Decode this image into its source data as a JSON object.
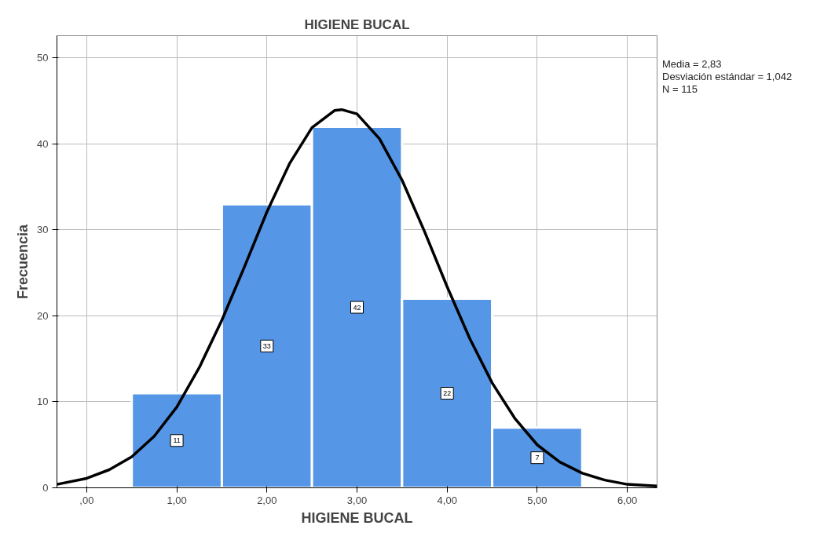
{
  "chart_data": {
    "type": "histogram",
    "title": "HIGIENE BUCAL",
    "xlabel": "HIGIENE BUCAL",
    "ylabel": "Frecuencia",
    "bins": [
      0.5,
      1.5,
      2.5,
      3.5,
      4.5,
      5.5
    ],
    "values": [
      11,
      33,
      42,
      22,
      7
    ],
    "color": "#5596e6",
    "value_labels": [
      "11",
      "33",
      "42",
      "22",
      "7"
    ],
    "series": [
      {
        "type": "line",
        "color": "#000000",
        "x": [
          -0.33,
          0,
          0.25,
          0.5,
          0.75,
          1,
          1.25,
          1.5,
          1.75,
          2,
          2.25,
          2.5,
          2.75,
          2.83,
          3,
          3.25,
          3.5,
          3.75,
          4,
          4.25,
          4.5,
          4.75,
          5,
          5.25,
          5.5,
          5.75,
          6,
          6.33
        ],
        "values": [
          0.4,
          1.1,
          2.1,
          3.6,
          6.0,
          9.4,
          14.0,
          19.5,
          25.7,
          32.1,
          37.7,
          41.9,
          43.9,
          44.0,
          43.5,
          40.6,
          35.8,
          29.8,
          23.4,
          17.4,
          12.2,
          8.1,
          5.0,
          3.0,
          1.7,
          0.9,
          0.4,
          0.2
        ]
      }
    ],
    "xlim": [
      -0.33,
      6.33
    ],
    "ylim": [
      0,
      52.6
    ],
    "xticks": [
      {
        "value": 0,
        "label": ",00"
      },
      {
        "value": 1,
        "label": "1,00"
      },
      {
        "value": 2,
        "label": "2,00"
      },
      {
        "value": 3,
        "label": "3,00"
      },
      {
        "value": 4,
        "label": "4,00"
      },
      {
        "value": 5,
        "label": "5,00"
      },
      {
        "value": 6,
        "label": "6,00"
      }
    ],
    "yticks": [
      0,
      10,
      20,
      30,
      40,
      50
    ],
    "grid": true,
    "annotations": [
      "Media = 2,83",
      "Desviación estándar = 1,042",
      "N = 115"
    ]
  }
}
